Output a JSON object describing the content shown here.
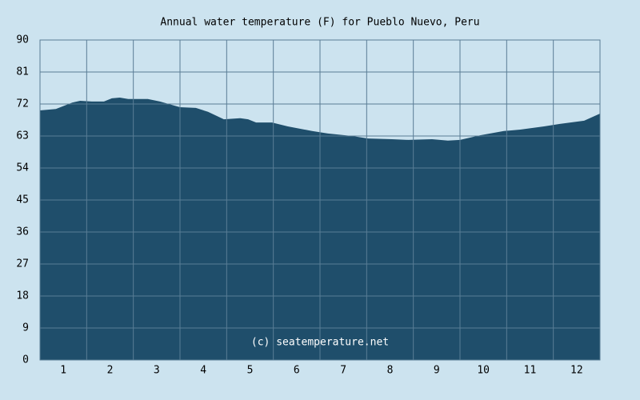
{
  "chart_data": {
    "type": "area",
    "title": "Annual water temperature (F) for Pueblo Nuevo, Peru",
    "annotation": "(c) seatemperature.net",
    "x": [
      0.5,
      0.84,
      1.19,
      1.36,
      1.61,
      1.87,
      2.04,
      2.21,
      2.39,
      2.81,
      3.07,
      3.5,
      3.84,
      4.1,
      4.44,
      4.79,
      4.96,
      5.13,
      5.47,
      5.81,
      6.33,
      6.67,
      7.19,
      7.53,
      8.04,
      8.39,
      8.9,
      9.24,
      9.5,
      9.93,
      10.44,
      10.79,
      11.3,
      11.64,
      12.16,
      12.5
    ],
    "values": [
      70.2,
      70.6,
      72.4,
      72.9,
      72.7,
      72.7,
      73.6,
      73.8,
      73.4,
      73.4,
      72.7,
      71.1,
      70.9,
      69.8,
      67.7,
      68,
      67.7,
      66.8,
      66.8,
      65.7,
      64.4,
      63.7,
      63,
      62.3,
      62.1,
      61.9,
      62.1,
      61.7,
      61.9,
      63.2,
      64.4,
      64.8,
      65.7,
      66.4,
      67.3,
      69.3
    ],
    "color": "#1f4e6b",
    "xlim": [
      0.5,
      12.5
    ],
    "xticks": [
      1,
      2,
      3,
      4,
      5,
      6,
      7,
      8,
      9,
      10,
      11,
      12
    ],
    "ylim": [
      0,
      90
    ],
    "yticks": [
      0,
      9,
      18,
      27,
      36,
      45,
      54,
      63,
      72,
      81,
      90
    ],
    "grid": true
  }
}
